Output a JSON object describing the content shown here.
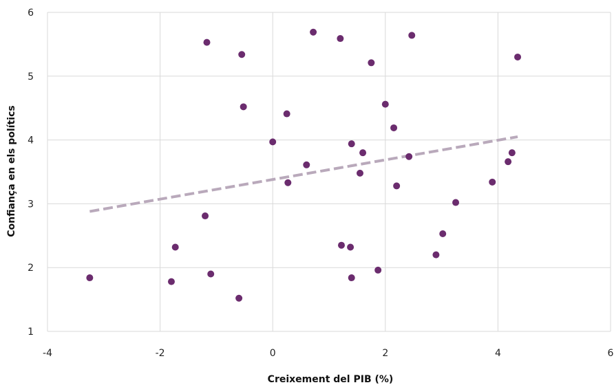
{
  "chart_data": {
    "type": "scatter",
    "xlabel": "Creixement del PIB (%)",
    "ylabel": "Confiança en els polítics",
    "xlim": [
      -4,
      6
    ],
    "ylim": [
      1,
      6
    ],
    "x_ticks": [
      -4,
      -2,
      0,
      2,
      4,
      6
    ],
    "y_ticks": [
      1,
      2,
      3,
      4,
      5,
      6
    ],
    "grid": true,
    "legend": "none",
    "point_color": "#6b2c6e",
    "trendline": {
      "style": "dashed",
      "color": "#b9a9bb",
      "points": [
        [
          -3.25,
          2.88
        ],
        [
          4.35,
          4.05
        ]
      ]
    },
    "points": [
      {
        "x": -3.25,
        "y": 1.84
      },
      {
        "x": -1.8,
        "y": 1.78
      },
      {
        "x": -1.73,
        "y": 2.32
      },
      {
        "x": -1.2,
        "y": 2.81
      },
      {
        "x": -1.17,
        "y": 5.53
      },
      {
        "x": -1.1,
        "y": 1.9
      },
      {
        "x": -0.6,
        "y": 1.52
      },
      {
        "x": -0.55,
        "y": 5.34
      },
      {
        "x": -0.52,
        "y": 4.52
      },
      {
        "x": 0.0,
        "y": 3.97
      },
      {
        "x": 0.25,
        "y": 4.41
      },
      {
        "x": 0.27,
        "y": 3.33
      },
      {
        "x": 0.6,
        "y": 3.61
      },
      {
        "x": 0.72,
        "y": 5.69
      },
      {
        "x": 1.2,
        "y": 5.59
      },
      {
        "x": 1.22,
        "y": 2.35
      },
      {
        "x": 1.38,
        "y": 2.32
      },
      {
        "x": 1.4,
        "y": 3.94
      },
      {
        "x": 1.4,
        "y": 1.84
      },
      {
        "x": 1.55,
        "y": 3.48
      },
      {
        "x": 1.6,
        "y": 3.8
      },
      {
        "x": 1.75,
        "y": 5.21
      },
      {
        "x": 1.87,
        "y": 1.96
      },
      {
        "x": 2.0,
        "y": 4.56
      },
      {
        "x": 2.15,
        "y": 4.19
      },
      {
        "x": 2.2,
        "y": 3.28
      },
      {
        "x": 2.42,
        "y": 3.74
      },
      {
        "x": 2.47,
        "y": 5.64
      },
      {
        "x": 2.9,
        "y": 2.2
      },
      {
        "x": 3.02,
        "y": 2.53
      },
      {
        "x": 3.25,
        "y": 3.02
      },
      {
        "x": 3.9,
        "y": 3.34
      },
      {
        "x": 4.18,
        "y": 3.66
      },
      {
        "x": 4.25,
        "y": 3.8
      },
      {
        "x": 4.35,
        "y": 5.3
      }
    ]
  }
}
